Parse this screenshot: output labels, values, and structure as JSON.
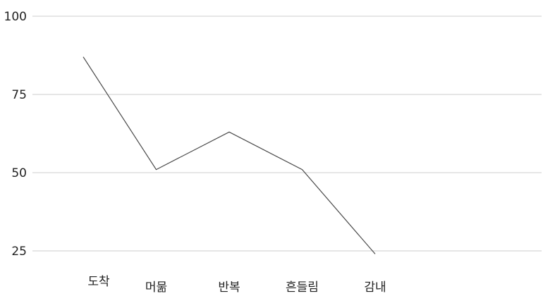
{
  "chart_data": {
    "type": "line",
    "title": "",
    "xlabel": "",
    "ylabel": "",
    "categories": [
      "도착",
      "머묾",
      "반복",
      "흔들림",
      "감내"
    ],
    "values": [
      87,
      51,
      63,
      51,
      24
    ],
    "ylim": [
      25,
      100
    ],
    "yticks": [
      100,
      75,
      50,
      25
    ],
    "grid": true,
    "legend": "none",
    "colors": {
      "line": "#4a4a4a",
      "grid": "#dddddd",
      "text": "#222222"
    }
  }
}
